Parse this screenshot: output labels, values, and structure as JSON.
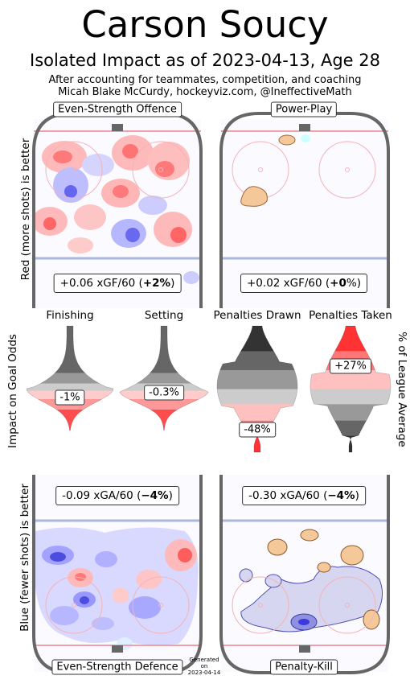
{
  "header": {
    "title": "Carson Soucy",
    "subtitle": "Isolated Impact as of 2023-04-13, Age 28",
    "note_line1": "After accounting for teammates, competition, and coaching",
    "note_line2": "Micah Blake McCurdy, hockeyviz.com, @IneffectiveMath"
  },
  "side_labels": {
    "offence": "Red (more shots) is better",
    "middle": "Impact on Goal Odds",
    "defence": "Blue (fewer shots) is better",
    "right": "% of League Average"
  },
  "panels": {
    "es_offence": {
      "title": "Even-Strength Offence",
      "value_text": "+0.06 xGF/60 (",
      "pct": "+2%",
      "close": ")"
    },
    "power_play": {
      "title": "Power-Play",
      "value_text": "+0.02 xGF/60 (",
      "pct": "+0",
      "close": "%)"
    },
    "es_defence": {
      "title": "Even-Strength Defence",
      "value_text": "-0.09 xGA/60 (",
      "pct": "−4%",
      "close": ")"
    },
    "penalty_kill": {
      "title": "Penalty-Kill",
      "value_text": "-0.30 xGA/60 (",
      "pct": "−4%",
      "close": ")"
    }
  },
  "generated": {
    "line1": "Generated",
    "line2": "on",
    "line3": "2023-04-14"
  },
  "colors": {
    "red": "#ff3333",
    "blue": "#4444ff",
    "orange": "#f5c89a",
    "rink": "#666666",
    "blueline": "#aab8dd",
    "goalline": "#f0a0a8"
  },
  "chart_data": {
    "type": "violin",
    "series": [
      {
        "name": "Finishing",
        "value_label": "-1%",
        "value": -1
      },
      {
        "name": "Setting",
        "value_label": "-0.3%",
        "value": -0.3
      },
      {
        "name": "Penalties Drawn",
        "value_label": "-48%",
        "value": -48
      },
      {
        "name": "Penalties Taken",
        "value_label": "+27%",
        "value": 27
      }
    ]
  }
}
